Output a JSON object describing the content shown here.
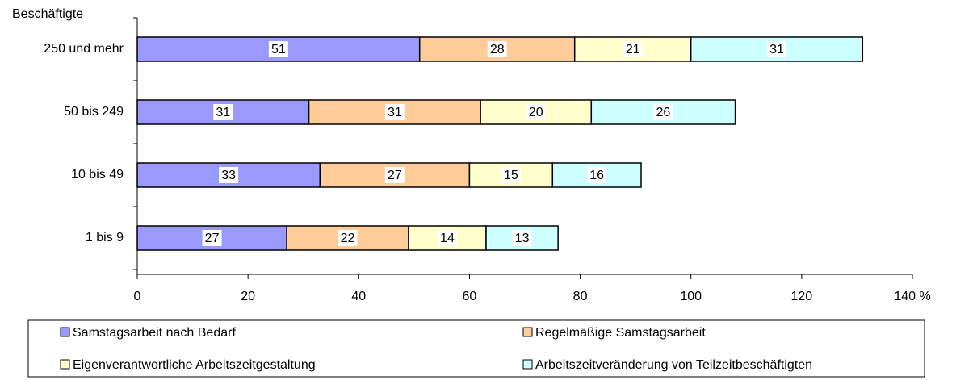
{
  "chart_data": {
    "type": "stacked-barh",
    "y_label": "Beschäftigte",
    "categories": [
      "250 und mehr",
      "50 bis 249",
      "10 bis 49",
      "1 bis 9"
    ],
    "series": [
      {
        "name": "Samstagsarbeit nach Bedarf",
        "color": "#9999ff",
        "values": [
          51,
          31,
          33,
          27
        ]
      },
      {
        "name": "Regelmäßige Samstagsarbeit",
        "color": "#ffcc99",
        "values": [
          28,
          31,
          27,
          22
        ]
      },
      {
        "name": "Eigenverantwortliche Arbeitszeitgestaltung",
        "color": "#ffffcc",
        "values": [
          21,
          20,
          15,
          14
        ]
      },
      {
        "name": "Arbeitszeitveränderung von Teilzeitbeschäftigten",
        "color": "#ccffff",
        "values": [
          31,
          26,
          16,
          13
        ]
      }
    ],
    "xlim": [
      0,
      140
    ],
    "xticks": [
      0,
      20,
      40,
      60,
      80,
      100,
      120,
      {
        "value": 140,
        "label": "140 %"
      }
    ],
    "legend": "bottom"
  }
}
